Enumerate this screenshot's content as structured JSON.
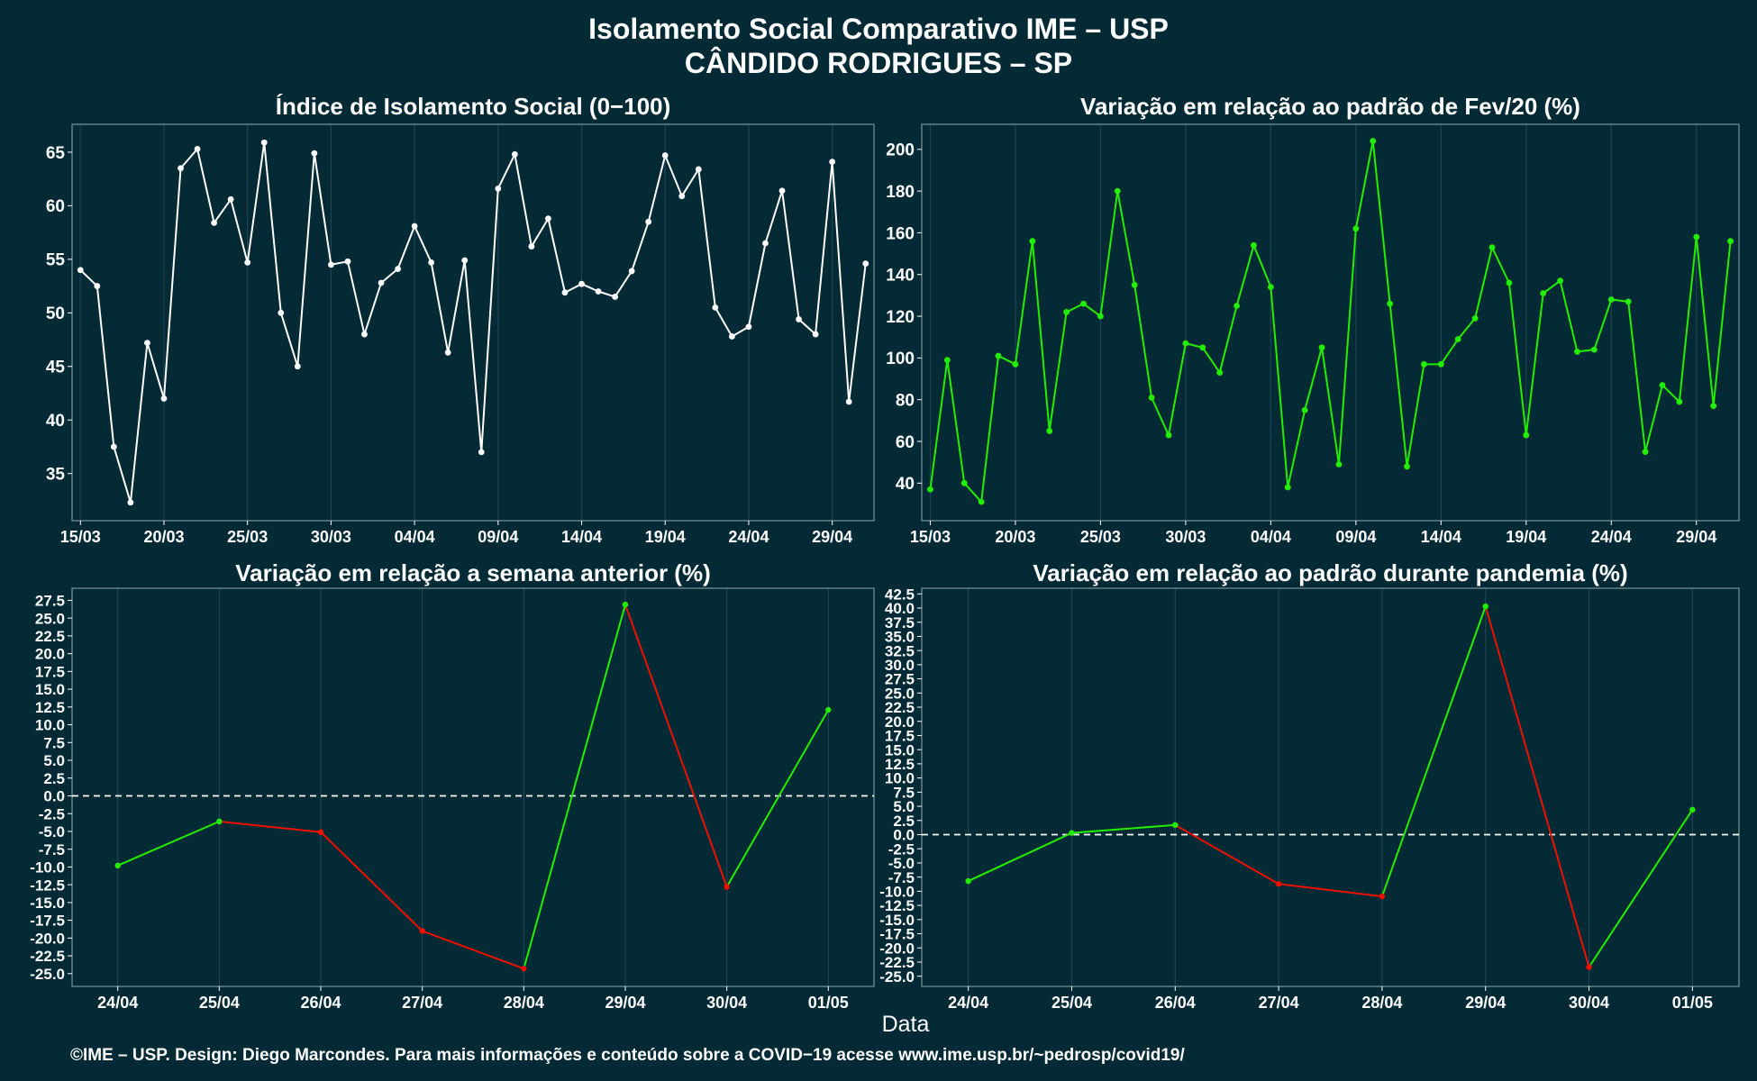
{
  "page": {
    "title_line1": "Isolamento Social Comparativo IME – USP",
    "title_line2": "CÂNDIDO RODRIGUES – SP",
    "xaxis_label": "Data",
    "footer": "©IME – USP. Design: Diego Marcondes. Para mais informações e conteúdo sobre a COVID−19 acesse www.ime.usp.br/~pedrosp/covid19/"
  },
  "colors": {
    "background": "#042a36",
    "grid": "#1d4452",
    "white_series": "#ffffff",
    "green": "#22ee00",
    "red": "#ee1100"
  },
  "chart_data": [
    {
      "id": "isolamento",
      "type": "line",
      "title": "Índice de Isolamento Social (0−100)",
      "x": [
        "15/03",
        "16/03",
        "17/03",
        "18/03",
        "19/03",
        "20/03",
        "21/03",
        "22/03",
        "23/03",
        "24/03",
        "25/03",
        "26/03",
        "27/03",
        "28/03",
        "29/03",
        "30/03",
        "31/03",
        "01/04",
        "02/04",
        "03/04",
        "04/04",
        "05/04",
        "06/04",
        "07/04",
        "08/04",
        "09/04",
        "10/04",
        "11/04",
        "12/04",
        "13/04",
        "14/04",
        "15/04",
        "16/04",
        "17/04",
        "18/04",
        "19/04",
        "20/04",
        "21/04",
        "22/04",
        "23/04",
        "24/04",
        "25/04",
        "26/04",
        "27/04",
        "28/04",
        "29/04",
        "30/04",
        "01/05"
      ],
      "values": [
        54.0,
        52.5,
        37.5,
        32.3,
        47.2,
        42.0,
        63.5,
        65.3,
        58.4,
        60.6,
        54.7,
        65.9,
        50.0,
        45.0,
        64.9,
        54.5,
        54.8,
        48.0,
        52.8,
        54.1,
        58.1,
        54.7,
        46.3,
        54.9,
        37.0,
        61.6,
        64.8,
        56.2,
        58.8,
        51.9,
        52.7,
        52.0,
        51.5,
        53.9,
        58.5,
        64.7,
        60.9,
        63.4,
        50.5,
        47.8,
        48.7,
        56.5,
        61.4,
        49.4,
        48.0,
        64.1,
        41.7,
        54.6
      ],
      "xticks": [
        "15/03",
        "20/03",
        "25/03",
        "30/03",
        "04/04",
        "09/04",
        "14/04",
        "19/04",
        "24/04",
        "29/04"
      ],
      "yticks": [
        35,
        40,
        45,
        50,
        55,
        60,
        65
      ],
      "ylim": [
        30.6,
        67.6
      ],
      "series_color": "white"
    },
    {
      "id": "fev20",
      "type": "line",
      "title": "Variação em relação ao padrão de Fev/20 (%)",
      "x": [
        "15/03",
        "16/03",
        "17/03",
        "18/03",
        "19/03",
        "20/03",
        "21/03",
        "22/03",
        "23/03",
        "24/03",
        "25/03",
        "26/03",
        "27/03",
        "28/03",
        "29/03",
        "30/03",
        "31/03",
        "01/04",
        "02/04",
        "03/04",
        "04/04",
        "05/04",
        "06/04",
        "07/04",
        "08/04",
        "09/04",
        "10/04",
        "11/04",
        "12/04",
        "13/04",
        "14/04",
        "15/04",
        "16/04",
        "17/04",
        "18/04",
        "19/04",
        "20/04",
        "21/04",
        "22/04",
        "23/04",
        "24/04",
        "25/04",
        "26/04",
        "27/04",
        "28/04",
        "29/04",
        "30/04",
        "01/05"
      ],
      "values": [
        37,
        99,
        40,
        31,
        101,
        97,
        156,
        65,
        122,
        126,
        120,
        180,
        135,
        81,
        63,
        107,
        105,
        93,
        125,
        154,
        134,
        38,
        75,
        105,
        49,
        162,
        204,
        126,
        48,
        97,
        97,
        109,
        119,
        153,
        136,
        63,
        131,
        137,
        103,
        104,
        128,
        127,
        55,
        87,
        79,
        158,
        77,
        156
      ],
      "xticks": [
        "15/03",
        "20/03",
        "25/03",
        "30/03",
        "04/04",
        "09/04",
        "14/04",
        "19/04",
        "24/04",
        "29/04"
      ],
      "yticks": [
        40,
        60,
        80,
        100,
        120,
        140,
        160,
        180,
        200
      ],
      "ylim": [
        22,
        212
      ],
      "series_color": "green"
    },
    {
      "id": "semana",
      "type": "line",
      "title": "Variação em relação a semana anterior (%)",
      "x": [
        "24/04",
        "25/04",
        "26/04",
        "27/04",
        "28/04",
        "29/04",
        "30/04",
        "01/05"
      ],
      "values": [
        -9.8,
        -3.6,
        -5.1,
        -19.0,
        -24.3,
        26.9,
        -12.8,
        12.1
      ],
      "xticks": [
        "24/04",
        "25/04",
        "26/04",
        "27/04",
        "28/04",
        "29/04",
        "30/04",
        "01/05"
      ],
      "yticks": [
        -25.0,
        -22.5,
        -20.0,
        -17.5,
        -15.0,
        -12.5,
        -10.0,
        -7.5,
        -5.0,
        -2.5,
        0.0,
        2.5,
        5.0,
        7.5,
        10.0,
        12.5,
        15.0,
        17.5,
        20.0,
        22.5,
        25.0,
        27.5
      ],
      "ylim": [
        -26.8,
        29.2
      ],
      "reference_line": 0,
      "segment_colors": "green when rising, red when falling"
    },
    {
      "id": "pandemia",
      "type": "line",
      "title": "Variação em relação ao padrão durante pandemia (%)",
      "x": [
        "24/04",
        "25/04",
        "26/04",
        "27/04",
        "28/04",
        "29/04",
        "30/04",
        "01/05"
      ],
      "values": [
        -8.2,
        0.3,
        1.7,
        -8.7,
        -10.9,
        40.3,
        -23.4,
        4.4
      ],
      "xticks": [
        "24/04",
        "25/04",
        "26/04",
        "27/04",
        "28/04",
        "29/04",
        "30/04",
        "01/05"
      ],
      "yticks": [
        -25.0,
        -22.5,
        -20.0,
        -17.5,
        -15.0,
        -12.5,
        -10.0,
        -7.5,
        -5.0,
        -2.5,
        0.0,
        2.5,
        5.0,
        7.5,
        10.0,
        12.5,
        15.0,
        17.5,
        20.0,
        22.5,
        25.0,
        27.5,
        30.0,
        32.5,
        35.0,
        37.5,
        40.0,
        42.5
      ],
      "ylim": [
        -26.8,
        43.5
      ],
      "reference_line": 0,
      "segment_colors": "green when rising, red when falling"
    }
  ]
}
